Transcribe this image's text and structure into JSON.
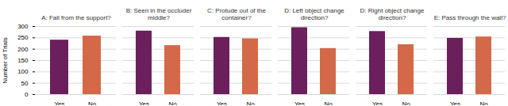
{
  "chart_data": [
    {
      "type": "bar",
      "title": "A: Fall from the support?",
      "categories": [
        "Yes",
        "No"
      ],
      "values": [
        240,
        258
      ],
      "colors": [
        "#6B1F5C",
        "#D4694A"
      ],
      "ylabel": "Number of Trials",
      "ylim": [
        0,
        300
      ],
      "yticks": [
        0,
        50,
        100,
        150,
        200,
        250,
        300
      ],
      "grid": true
    },
    {
      "type": "bar",
      "title": "B: Seen in the occluder middle?",
      "categories": [
        "Yes",
        "No"
      ],
      "values": [
        280,
        216
      ],
      "colors": [
        "#6B1F5C",
        "#D4694A"
      ],
      "ylim": [
        0,
        300
      ],
      "yticks": [
        0,
        50,
        100,
        150,
        200,
        250,
        300
      ],
      "grid": true,
      "tick_labels": "x"
    },
    {
      "type": "bar",
      "title": "C: Protude out of the container?",
      "categories": [
        "Yes",
        "No"
      ],
      "values": [
        252,
        246
      ],
      "colors": [
        "#6B1F5C",
        "#D4694A"
      ],
      "ylim": [
        0,
        300
      ],
      "yticks": [
        0,
        50,
        100,
        150,
        200,
        250,
        300
      ],
      "grid": true,
      "tick_labels": "x"
    },
    {
      "type": "bar",
      "title": "D: Left object change direction?",
      "categories": [
        "Yes",
        "No"
      ],
      "values": [
        295,
        203
      ],
      "colors": [
        "#6B1F5C",
        "#D4694A"
      ],
      "ylim": [
        0,
        300
      ],
      "yticks": [
        0,
        50,
        100,
        150,
        200,
        250,
        300
      ],
      "grid": true,
      "tick_labels": "x"
    },
    {
      "type": "bar",
      "title": "D: Right object change direction?",
      "categories": [
        "Yes",
        "No"
      ],
      "values": [
        278,
        220
      ],
      "colors": [
        "#6B1F5C",
        "#D4694A"
      ],
      "ylim": [
        0,
        300
      ],
      "yticks": [
        0,
        50,
        100,
        150,
        200,
        250,
        300
      ],
      "grid": true,
      "tick_labels": "x"
    },
    {
      "type": "bar",
      "title": "E: Pass through the wall?",
      "categories": [
        "Yes",
        "No"
      ],
      "values": [
        248,
        254
      ],
      "colors": [
        "#6B1F5C",
        "#D4694A"
      ],
      "ylim": [
        0,
        300
      ],
      "yticks": [
        0,
        50,
        100,
        150,
        200,
        250,
        300
      ],
      "grid": true,
      "tick_labels": "x"
    }
  ]
}
